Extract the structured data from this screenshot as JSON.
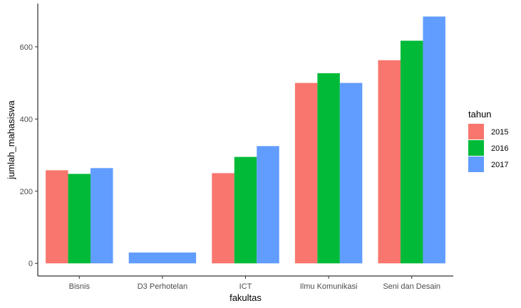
{
  "chart_data": {
    "type": "bar",
    "xlabel": "fakultas",
    "ylabel": "jumlah_mahasiswa",
    "categories": [
      "Bisnis",
      "D3 Perhotelan",
      "ICT",
      "Ilmu Komunikasi",
      "Seni dan Desain"
    ],
    "ylim": [
      0,
      700
    ],
    "yticks": [
      0,
      200,
      400,
      600
    ],
    "grid": false,
    "legend": {
      "title": "tahun",
      "position": "right"
    },
    "series": [
      {
        "name": "2015",
        "color": "#F8766D",
        "values": [
          258,
          null,
          250,
          500,
          563
        ]
      },
      {
        "name": "2016",
        "color": "#00BA38",
        "values": [
          248,
          null,
          295,
          527,
          617
        ]
      },
      {
        "name": "2017",
        "color": "#619CFF",
        "values": [
          264,
          30,
          325,
          500,
          684
        ]
      }
    ]
  }
}
